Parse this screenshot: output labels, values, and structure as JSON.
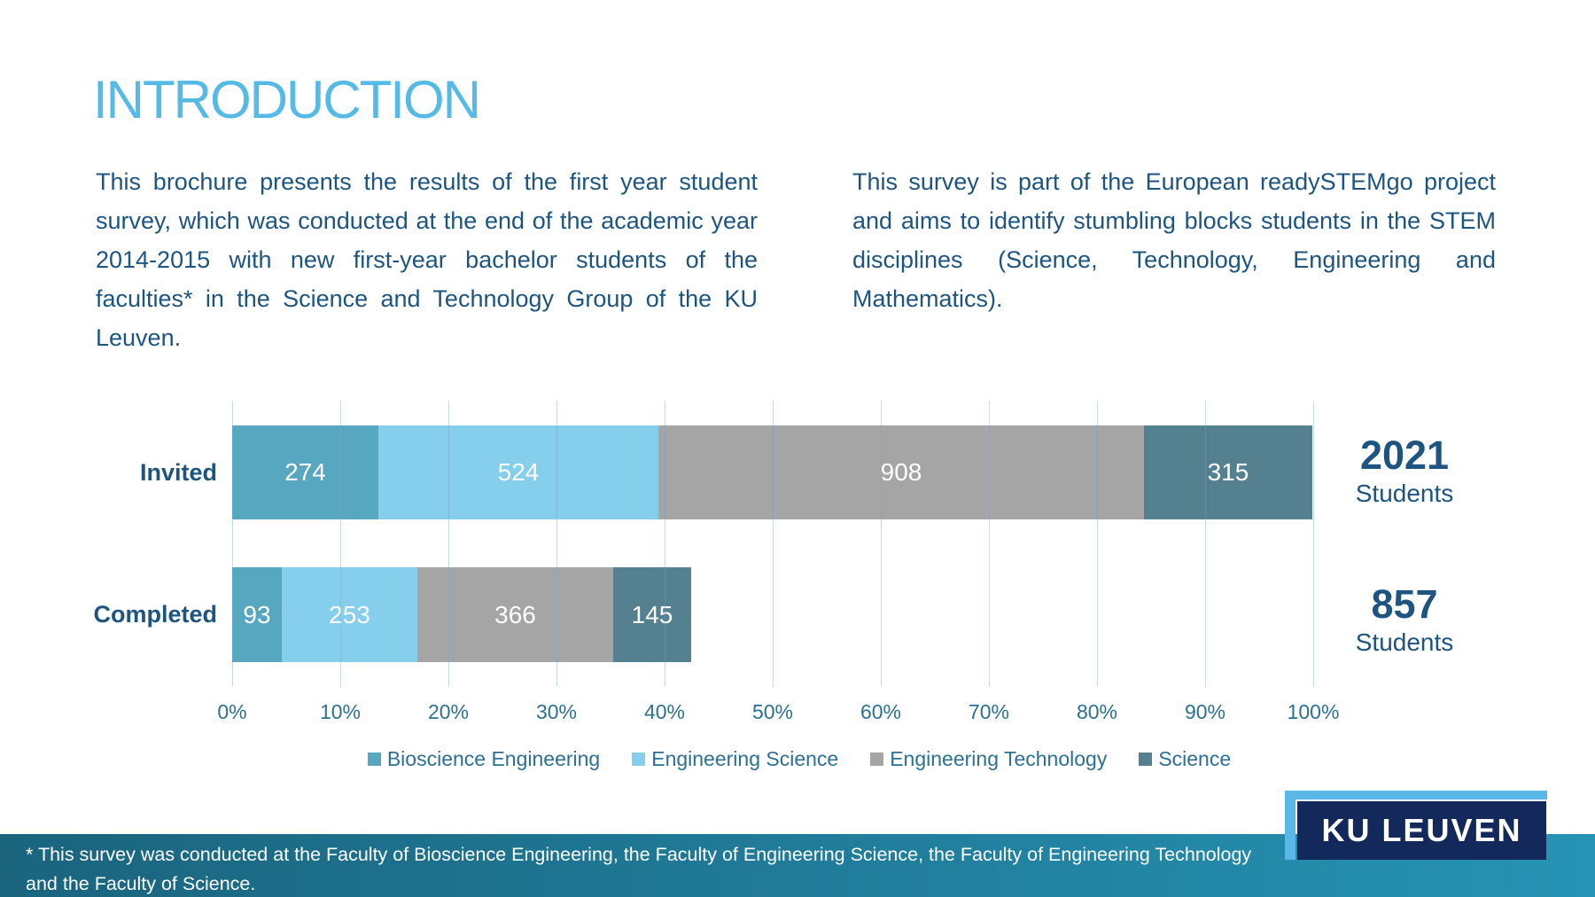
{
  "page": {
    "title": "INTRODUCTION"
  },
  "intro": {
    "left_paragraph": "This brochure presents the results of the first year student survey, which was conducted at the end of the academic year 2014-2015 with new first-year bachelor students of the faculties* in the Science and Technology Group of the KU Leuven.",
    "right_paragraph": "This survey is part of the European readySTEMgo project and aims to identify stumbling blocks students in the STEM disciplines (Science, Technology, Engineering and Mathematics)."
  },
  "chart_data": {
    "type": "bar",
    "orientation": "horizontal",
    "stacked": true,
    "categories": [
      "Invited",
      "Completed"
    ],
    "series": [
      {
        "name": "Bioscience Engineering",
        "color": "#57A7C1",
        "values": [
          274,
          93
        ]
      },
      {
        "name": "Engineering Science",
        "color": "#85CEEC",
        "values": [
          524,
          253
        ]
      },
      {
        "name": "Engineering Technology",
        "color": "#A5A5A5",
        "values": [
          908,
          366
        ]
      },
      {
        "name": "Science",
        "color": "#54808F",
        "values": [
          315,
          145
        ]
      }
    ],
    "category_totals": [
      {
        "category": "Invited",
        "value": "2021",
        "label": "Students"
      },
      {
        "category": "Completed",
        "value": "857",
        "label": "Students"
      }
    ],
    "x_axis": {
      "min": 0,
      "max": 100,
      "denominator": 2021,
      "ticks": [
        "0%",
        "10%",
        "20%",
        "30%",
        "40%",
        "50%",
        "60%",
        "70%",
        "80%",
        "90%",
        "100%"
      ]
    },
    "grid": true,
    "legend_position": "bottom"
  },
  "footer": {
    "note": "* This survey was conducted at the Faculty of Bioscience Engineering, the Faculty of Engineering Science, the Faculty of Engineering Technology and the Faculty of Science."
  },
  "logo": {
    "text": "KU LEUVEN",
    "navy": "#13295B",
    "light_blue": "#5AB7E8"
  },
  "colors": {
    "title": "#55BAE6",
    "body_text": "#1D5480",
    "axis_text": "#2C7093",
    "grid_line": "rgba(120,165,200,0.40)",
    "value_label": "#FFFFFF",
    "footer_gradient_left": "#1A647E",
    "footer_gradient_right": "#2693B4"
  }
}
